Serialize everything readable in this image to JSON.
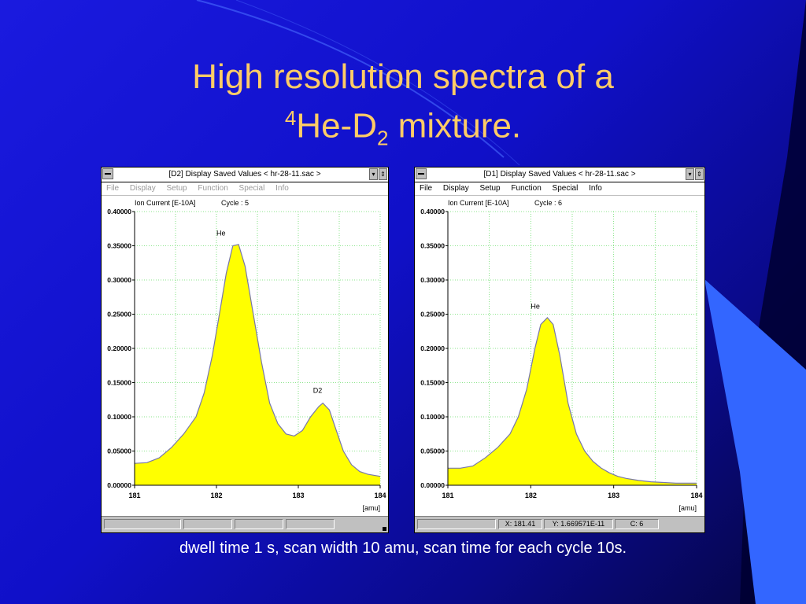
{
  "slide": {
    "title_line1": "High resolution spectra of a",
    "title_sup": "4",
    "title_he": "He-D",
    "title_sub": "2",
    "title_end": " mixture.",
    "caption": "dwell time 1 s, scan width 10 amu, scan time for each cycle 10s."
  },
  "windows": [
    {
      "title": "[D2] Display Saved Values  < hr-28-11.sac >",
      "menu": [
        "File",
        "Display",
        "Setup",
        "Function",
        "Special",
        "Info"
      ],
      "status": [
        "",
        "",
        "",
        ""
      ]
    },
    {
      "title": "[D1] Display Saved Values  < hr-28-11.sac >",
      "menu": [
        "File",
        "Display",
        "Setup",
        "Function",
        "Special",
        "Info"
      ],
      "status": [
        "X: 181.41",
        "Y: 1.669571E-11",
        "C: 6"
      ]
    }
  ],
  "chart_data": [
    {
      "type": "area",
      "ylabel": "Ion Current [E-10A]",
      "cycle_label": "Cycle : 5",
      "xunit": "[amu]",
      "xlim": [
        181,
        184
      ],
      "ylim": [
        0,
        0.4
      ],
      "xticks": [
        "181",
        "182",
        "183",
        "184"
      ],
      "yticks": [
        "0.00000",
        "0.05000",
        "0.10000",
        "0.15000",
        "0.20000",
        "0.25000",
        "0.30000",
        "0.35000",
        "0.40000"
      ],
      "fill_color": "#ffff00",
      "x": [
        181.0,
        181.15,
        181.3,
        181.45,
        181.6,
        181.75,
        181.85,
        181.95,
        182.05,
        182.12,
        182.2,
        182.27,
        182.35,
        182.45,
        182.55,
        182.65,
        182.75,
        182.85,
        182.95,
        183.05,
        183.15,
        183.25,
        183.3,
        183.38,
        183.45,
        183.55,
        183.65,
        183.75,
        183.85,
        184.0
      ],
      "y": [
        0.032,
        0.033,
        0.04,
        0.055,
        0.075,
        0.1,
        0.135,
        0.19,
        0.26,
        0.31,
        0.35,
        0.352,
        0.32,
        0.25,
        0.18,
        0.12,
        0.09,
        0.075,
        0.072,
        0.08,
        0.1,
        0.115,
        0.12,
        0.11,
        0.085,
        0.05,
        0.03,
        0.02,
        0.016,
        0.013
      ],
      "annotations": [
        {
          "text": "He",
          "x": 182.0,
          "y": 0.365
        },
        {
          "text": "D2",
          "x": 183.18,
          "y": 0.135
        }
      ]
    },
    {
      "type": "area",
      "ylabel": "Ion Current [E-10A]",
      "cycle_label": "Cycle : 6",
      "xunit": "[amu]",
      "xlim": [
        181,
        184
      ],
      "ylim": [
        0,
        0.4
      ],
      "xticks": [
        "181",
        "182",
        "183",
        "184"
      ],
      "yticks": [
        "0.00000",
        "0.05000",
        "0.10000",
        "0.15000",
        "0.20000",
        "0.25000",
        "0.30000",
        "0.35000",
        "0.40000"
      ],
      "fill_color": "#ffff00",
      "x": [
        181.0,
        181.15,
        181.3,
        181.45,
        181.6,
        181.75,
        181.85,
        181.95,
        182.05,
        182.12,
        182.2,
        182.27,
        182.35,
        182.45,
        182.55,
        182.65,
        182.75,
        182.85,
        182.95,
        183.05,
        183.15,
        183.3,
        183.45,
        183.6,
        183.75,
        183.9,
        184.0
      ],
      "y": [
        0.025,
        0.025,
        0.028,
        0.04,
        0.055,
        0.075,
        0.1,
        0.14,
        0.2,
        0.235,
        0.245,
        0.235,
        0.19,
        0.12,
        0.075,
        0.05,
        0.035,
        0.025,
        0.018,
        0.013,
        0.01,
        0.007,
        0.005,
        0.004,
        0.003,
        0.003,
        0.003
      ],
      "annotations": [
        {
          "text": "He",
          "x": 182.0,
          "y": 0.258
        }
      ]
    }
  ]
}
